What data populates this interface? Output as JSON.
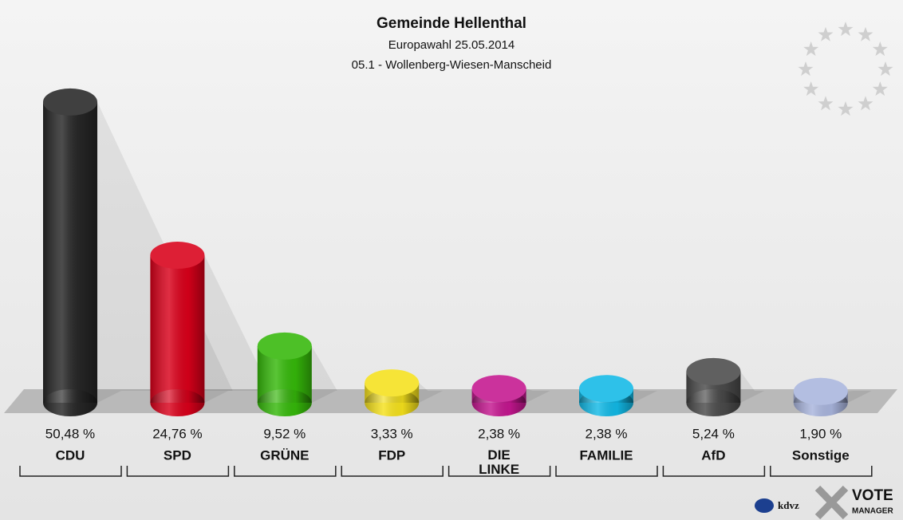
{
  "chart_data": {
    "type": "bar",
    "title": "Gemeinde Hellenthal",
    "subtitle": "Europawahl 25.05.2014",
    "subtitle2": "05.1 - Wollenberg-Wiesen-Manscheid",
    "categories": [
      "CDU",
      "SPD",
      "GRÜNE",
      "FDP",
      "DIE LINKE",
      "FAMILIE",
      "AfD",
      "Sonstige"
    ],
    "values": [
      50.48,
      24.76,
      9.52,
      3.33,
      2.38,
      2.38,
      5.24,
      1.9
    ],
    "value_labels": [
      "50,48 %",
      "24,76 %",
      "9,52 %",
      "3,33 %",
      "2,38 %",
      "2,38 %",
      "5,24 %",
      "1,90 %"
    ],
    "colors": [
      "#262626",
      "#d9001a",
      "#35b80a",
      "#f5e11c",
      "#c4168f",
      "#12b9e6",
      "#4a4a4a",
      "#a9b5dd"
    ],
    "logo": {
      "kdvz": "kdvz",
      "vote": "VOTE",
      "manager": "MANAGER"
    }
  }
}
